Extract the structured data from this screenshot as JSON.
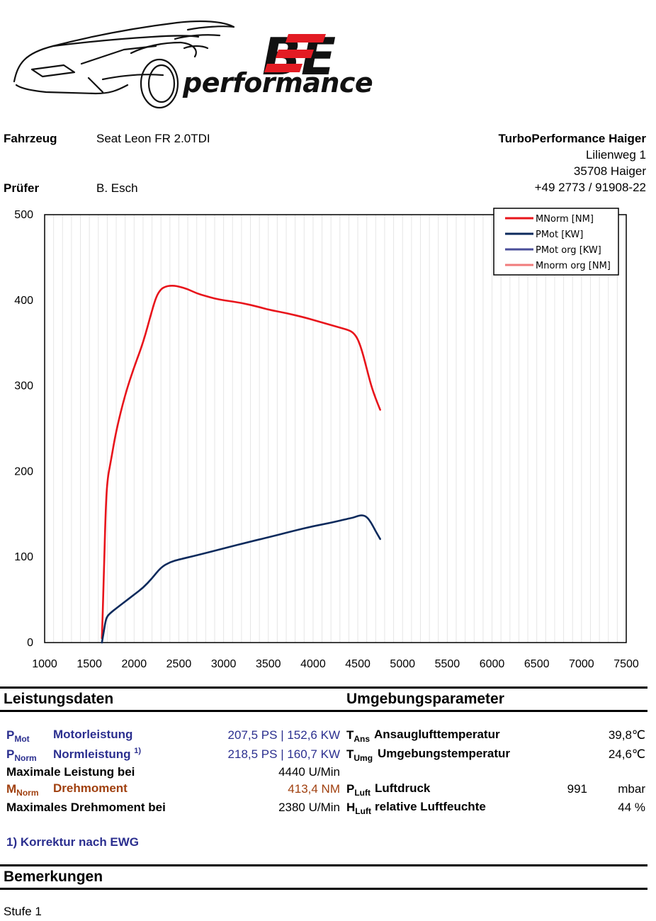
{
  "brand": {
    "logo_letters": "BE",
    "name": "performance"
  },
  "header": {
    "vehicle_label": "Fahrzeug",
    "vehicle_value": "Seat Leon FR 2.0TDI",
    "tester_label": "Prüfer",
    "tester_value": "B. Esch",
    "company": "TurboPerformance Haiger",
    "street": "Lilienweg 1",
    "city": "35708 Haiger",
    "phone": "+49 2773 / 91908-22"
  },
  "chart_data": {
    "type": "line",
    "xlim": [
      1000,
      7500
    ],
    "ylim": [
      0,
      500
    ],
    "x_ticks": [
      1000,
      1500,
      2000,
      2500,
      3000,
      3500,
      4000,
      4500,
      5000,
      5500,
      6000,
      6500,
      7000,
      7500
    ],
    "y_ticks": [
      0,
      100,
      200,
      300,
      400,
      500
    ],
    "grid": true,
    "legend_position": "top-right",
    "series": [
      {
        "name": "MNorm [NM]",
        "color": "#e8141b",
        "x": [
          1640,
          1660,
          1680,
          1700,
          1740,
          1800,
          1900,
          2000,
          2100,
          2200,
          2250,
          2300,
          2350,
          2400,
          2450,
          2500,
          2600,
          2700,
          2800,
          2900,
          3000,
          3200,
          3400,
          3500,
          3700,
          3900,
          4000,
          4100,
          4200,
          4300,
          4400,
          4450,
          4500,
          4550,
          4600,
          4650,
          4700,
          4750
        ],
        "y": [
          5,
          70,
          150,
          190,
          212,
          248,
          290,
          322,
          350,
          388,
          405,
          413,
          416,
          417,
          417,
          416,
          413,
          408,
          405,
          402,
          400,
          397,
          392,
          389,
          385,
          380,
          377,
          374,
          371,
          368,
          365,
          362,
          355,
          340,
          320,
          300,
          285,
          272
        ]
      },
      {
        "name": "PMot [KW]",
        "color": "#0c2a5c",
        "x": [
          1640,
          1660,
          1680,
          1700,
          1740,
          1800,
          1900,
          2000,
          2100,
          2200,
          2300,
          2400,
          2500,
          2700,
          3000,
          3300,
          3500,
          3800,
          4000,
          4200,
          4400,
          4450,
          4500,
          4550,
          4600,
          4650,
          4700,
          4750
        ],
        "y": [
          0,
          12,
          25,
          31,
          35,
          40,
          48,
          56,
          64,
          75,
          88,
          94,
          97,
          102,
          110,
          118,
          123,
          131,
          136,
          140,
          145,
          146,
          148,
          149,
          147,
          140,
          130,
          121
        ]
      },
      {
        "name": "PMot org [KW]",
        "color": "#4a4e9a",
        "x": [],
        "y": []
      },
      {
        "name": "Mnorm org [NM]",
        "color": "#f07b7b",
        "x": [],
        "y": []
      }
    ]
  },
  "performance": {
    "section_title": "Leistungsdaten",
    "pmot_symbol": "P",
    "pmot_sub": "Mot",
    "pmot_label": "Motorleistung",
    "pmot_value": "207,5 PS | 152,6 KW",
    "pnorm_symbol": "P",
    "pnorm_sub": "Norm",
    "pnorm_label": "Normleistung",
    "pnorm_sup": "1)",
    "pnorm_value": "218,5 PS | 160,7 KW",
    "max_power_label": "Maximale Leistung bei",
    "max_power_value": "4440 U/Min",
    "mnorm_symbol": "M",
    "mnorm_sub": "Norm",
    "mnorm_label": "Drehmoment",
    "mnorm_value": "413,4 NM",
    "max_torque_label": "Maximales Drehmoment bei",
    "max_torque_value": "2380 U/Min",
    "footnote": "1) Korrektur nach EWG"
  },
  "environment": {
    "section_title": "Umgebungsparameter",
    "tans_symbol": "T",
    "tans_sub": "Ans",
    "tans_label": "Ansauglufttemperatur",
    "tans_value": "39,8℃",
    "tumg_symbol": "T",
    "tumg_sub": "Umg",
    "tumg_label": "Umgebungstemperatur",
    "tumg_value": "24,6℃",
    "pluft_symbol": "P",
    "pluft_sub": "Luft",
    "pluft_label": "Luftdruck",
    "pluft_value": "991",
    "pluft_unit": "mbar",
    "hluft_symbol": "H",
    "hluft_sub": "Luft",
    "hluft_label": "relative Luftfeuchte",
    "hluft_value": "44 %"
  },
  "remarks": {
    "section_title": "Bemerkungen",
    "text": "Stufe 1"
  }
}
